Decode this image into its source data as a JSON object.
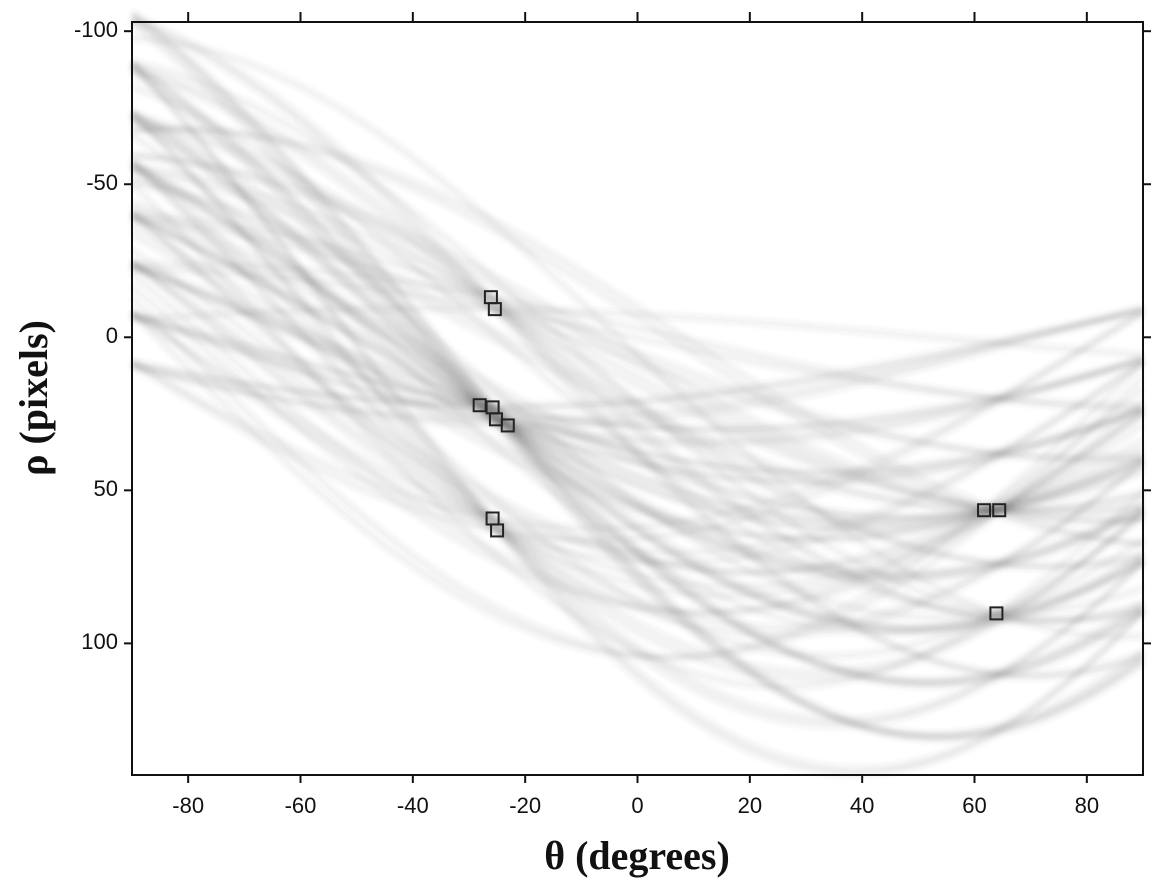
{
  "chart_data": {
    "type": "scatter",
    "x_label": "θ (degrees)",
    "y_label": "ρ (pixels)",
    "xlim": [
      -90,
      90
    ],
    "ylim": [
      -103,
      143
    ],
    "y_inverted": true,
    "xticks": [
      -80,
      -60,
      -40,
      -20,
      0,
      20,
      40,
      60,
      80
    ],
    "yticks": [
      -100,
      -50,
      0,
      50,
      100
    ],
    "marker": "square",
    "color": "#222",
    "x": [
      -26.1,
      -25.4,
      -28.1,
      -25.8,
      -25.2,
      -23.1,
      -25.8,
      -25.0,
      61.7,
      64.4,
      63.9
    ],
    "values": [
      -13.1,
      -9.2,
      22.2,
      22.9,
      26.8,
      28.8,
      59.2,
      63.1,
      56.5,
      56.5,
      90.2
    ]
  }
}
